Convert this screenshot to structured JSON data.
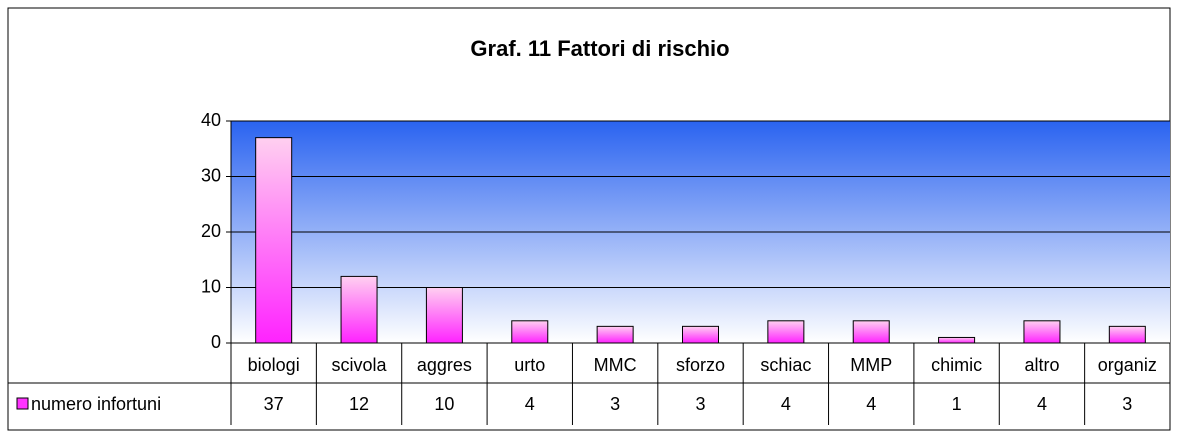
{
  "chart_data": {
    "type": "bar",
    "title": "Graf. 11  Fattori di rischio",
    "categories": [
      "biologi",
      "scivola",
      "aggres",
      "urto",
      "MMC",
      "sforzo",
      "schiac",
      "MMP",
      "chimic",
      "altro",
      "organiz"
    ],
    "series": [
      {
        "name": "numero infortuni",
        "color": "#ff33ff",
        "values": [
          37,
          12,
          10,
          4,
          3,
          3,
          4,
          4,
          1,
          4,
          3
        ]
      }
    ],
    "ylim": [
      0,
      40
    ],
    "yticks": [
      0,
      10,
      20,
      30,
      40
    ],
    "grid": true
  }
}
